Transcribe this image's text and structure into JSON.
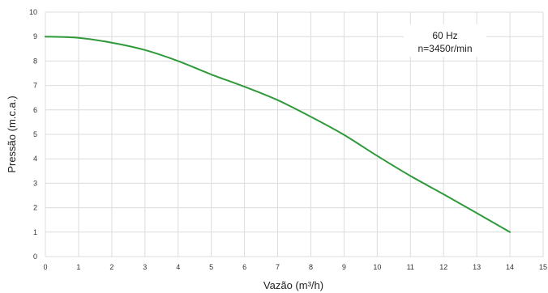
{
  "chart_data": {
    "type": "line",
    "xlabel": "Vazão (m³/h)",
    "ylabel": "Pressão (m.c.a.)",
    "xlim": [
      0,
      15
    ],
    "ylim": [
      0,
      10
    ],
    "xticks": [
      "0",
      "1",
      "2",
      "3",
      "4",
      "5",
      "6",
      "7",
      "8",
      "9",
      "10",
      "11",
      "12",
      "13",
      "14",
      "15"
    ],
    "yticks": [
      "0",
      "1",
      "2",
      "3",
      "4",
      "5",
      "6",
      "7",
      "8",
      "9",
      "10"
    ],
    "grid": true,
    "annotation": {
      "line1": "60 Hz",
      "line2": "n=3450r/min",
      "position": "top-right"
    },
    "series": [
      {
        "color": "#2e9a3a",
        "x": [
          0,
          1,
          2,
          3,
          4,
          5,
          6,
          7,
          8,
          9,
          10,
          11,
          12,
          13,
          14
        ],
        "y": [
          9.0,
          8.95,
          8.75,
          8.45,
          8.0,
          7.45,
          6.95,
          6.4,
          5.72,
          4.98,
          4.12,
          3.3,
          2.55,
          1.78,
          1.0
        ]
      }
    ]
  }
}
